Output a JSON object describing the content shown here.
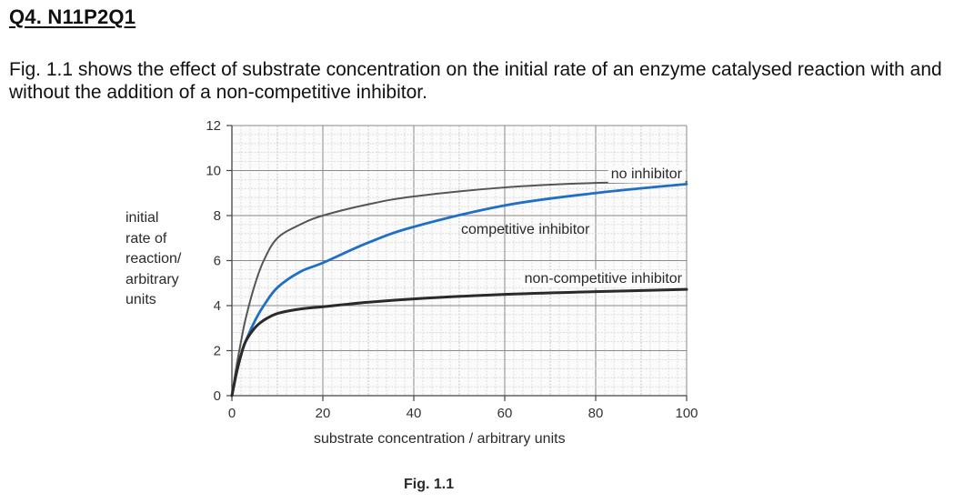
{
  "heading": "Q4. N11P2Q1",
  "intro": "Fig. 1.1 shows the effect of substrate concentration on the initial rate of an enzyme catalysed reaction with and without the addition of a non-competitive inhibitor.",
  "figure_caption": "Fig. 1.1",
  "chart_data": {
    "type": "line",
    "title": "",
    "xlabel": "substrate concentration / arbitrary units",
    "ylabel": "initial\nrate of\nreaction/\narbitrary\nunits",
    "xlim": [
      0,
      100
    ],
    "ylim": [
      0,
      12
    ],
    "xticks": [
      0,
      20,
      40,
      60,
      80,
      100
    ],
    "yticks": [
      0,
      2,
      4,
      6,
      8,
      10,
      12
    ],
    "grid": true,
    "legend": "none",
    "series": [
      {
        "name": "no inhibitor",
        "color": "#555555",
        "x": [
          0,
          1,
          2,
          3,
          5,
          7,
          10,
          15,
          20,
          30,
          40,
          60,
          80,
          100
        ],
        "y": [
          0,
          1.3,
          2.4,
          3.4,
          4.9,
          6.0,
          7.0,
          7.6,
          8.0,
          8.5,
          8.85,
          9.25,
          9.45,
          9.5
        ]
      },
      {
        "name": "competitive inhibitor",
        "color": "#1f6fc4",
        "x": [
          0,
          1,
          2,
          3,
          5,
          7,
          10,
          15,
          20,
          30,
          40,
          60,
          80,
          100
        ],
        "y": [
          0,
          1.0,
          1.8,
          2.4,
          3.3,
          4.0,
          4.8,
          5.5,
          5.9,
          6.8,
          7.5,
          8.45,
          9.0,
          9.4
        ]
      },
      {
        "name": "non-competitive inhibitor",
        "color": "#2a2a2a",
        "x": [
          0,
          1,
          2,
          3,
          5,
          7,
          10,
          15,
          20,
          30,
          40,
          60,
          80,
          100
        ],
        "y": [
          0,
          1.0,
          1.8,
          2.4,
          3.0,
          3.35,
          3.65,
          3.85,
          3.95,
          4.15,
          4.3,
          4.5,
          4.62,
          4.72
        ]
      }
    ]
  }
}
